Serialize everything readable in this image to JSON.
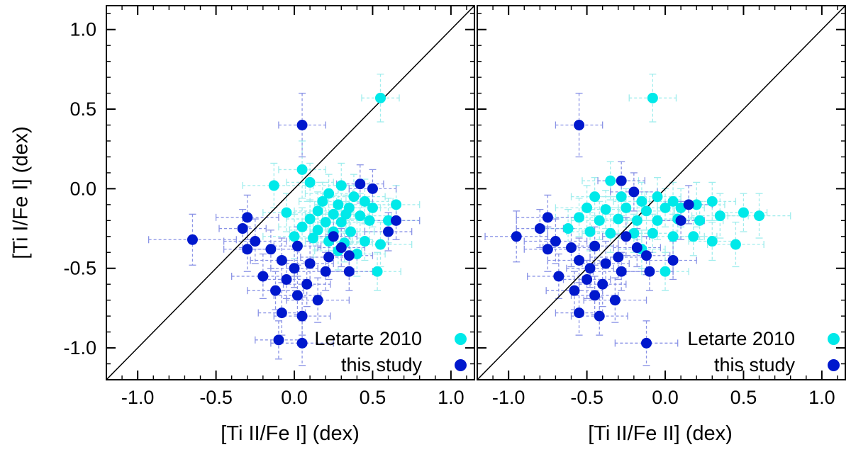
{
  "figure": {
    "background": "#ffffff",
    "axis_color": "#000000",
    "identity_line_color": "#000000"
  },
  "chart_data": [
    {
      "type": "scatter",
      "title": "",
      "xlabel": "[Ti II/Fe I] (dex)",
      "ylabel": "[Ti I/Fe I] (dex)",
      "xlim": [
        -1.2,
        1.15
      ],
      "ylim": [
        -1.2,
        1.15
      ],
      "ticks_major": [
        -1.0,
        -0.5,
        0.0,
        0.5,
        1.0
      ],
      "minor_tick_step": 0.1,
      "grid": false,
      "identity_line": true,
      "legend_position": "bottom-right",
      "series": [
        {
          "name": "Letarte 2010",
          "color": "#00e9e9",
          "errorbar_color": "#a0eded",
          "points": [
            [
              0.55,
              0.57,
              0.12,
              0.15
            ],
            [
              0.05,
              0.12,
              0.15,
              0.18
            ],
            [
              -0.13,
              0.02,
              0.2,
              0.14
            ],
            [
              0.1,
              0.04,
              0.15,
              0.12
            ],
            [
              0.3,
              0.02,
              0.18,
              0.14
            ],
            [
              0.22,
              -0.03,
              0.15,
              0.12
            ],
            [
              0.38,
              -0.05,
              0.2,
              0.14
            ],
            [
              0.18,
              -0.08,
              0.15,
              0.12
            ],
            [
              0.45,
              -0.08,
              0.18,
              0.14
            ],
            [
              0.28,
              -0.1,
              0.15,
              0.12
            ],
            [
              0.35,
              -0.12,
              0.2,
              0.14
            ],
            [
              0.5,
              -0.12,
              0.15,
              0.12
            ],
            [
              0.15,
              -0.14,
              0.15,
              0.12
            ],
            [
              0.25,
              -0.16,
              0.18,
              0.12
            ],
            [
              0.33,
              -0.16,
              0.15,
              0.12
            ],
            [
              0.42,
              -0.17,
              0.2,
              0.14
            ],
            [
              0.1,
              -0.19,
              0.15,
              0.12
            ],
            [
              0.2,
              -0.21,
              0.15,
              0.12
            ],
            [
              0.3,
              -0.21,
              0.18,
              0.12
            ],
            [
              0.48,
              -0.2,
              0.15,
              0.12
            ],
            [
              0.6,
              -0.2,
              0.2,
              0.14
            ],
            [
              0.65,
              -0.1,
              0.15,
              0.12
            ],
            [
              0.05,
              -0.24,
              0.15,
              0.12
            ],
            [
              0.15,
              -0.26,
              0.18,
              0.12
            ],
            [
              0.25,
              -0.27,
              0.15,
              0.12
            ],
            [
              0.36,
              -0.27,
              0.15,
              0.12
            ],
            [
              0.0,
              -0.3,
              0.2,
              0.14
            ],
            [
              0.12,
              -0.31,
              0.15,
              0.12
            ],
            [
              0.22,
              -0.33,
              0.15,
              0.12
            ],
            [
              0.32,
              -0.34,
              0.18,
              0.12
            ],
            [
              0.45,
              -0.33,
              0.15,
              0.12
            ],
            [
              0.55,
              -0.35,
              0.2,
              0.14
            ],
            [
              0.28,
              -0.39,
              0.15,
              0.12
            ],
            [
              0.4,
              -0.41,
              0.18,
              0.14
            ],
            [
              0.53,
              -0.52,
              0.15,
              0.12
            ],
            [
              -0.05,
              -0.15,
              0.15,
              0.12
            ]
          ]
        },
        {
          "name": "this study",
          "color": "#0018cd",
          "errorbar_color": "#8a93e6",
          "points": [
            [
              0.05,
              0.4,
              0.15,
              0.2
            ],
            [
              0.42,
              0.03,
              0.15,
              0.12
            ],
            [
              0.5,
              0.0,
              0.15,
              0.12
            ],
            [
              -0.3,
              -0.18,
              0.2,
              0.14
            ],
            [
              -0.33,
              -0.25,
              0.15,
              0.12
            ],
            [
              -0.65,
              -0.32,
              0.28,
              0.16
            ],
            [
              -0.25,
              -0.33,
              0.2,
              0.14
            ],
            [
              -0.3,
              -0.38,
              0.15,
              0.14
            ],
            [
              -0.15,
              -0.38,
              0.18,
              0.12
            ],
            [
              0.02,
              -0.36,
              0.15,
              0.12
            ],
            [
              0.25,
              -0.3,
              0.15,
              0.12
            ],
            [
              0.3,
              -0.37,
              0.15,
              0.12
            ],
            [
              0.22,
              -0.43,
              0.18,
              0.14
            ],
            [
              0.35,
              -0.42,
              0.15,
              0.12
            ],
            [
              -0.08,
              -0.45,
              0.2,
              0.14
            ],
            [
              0.0,
              -0.5,
              0.15,
              0.12
            ],
            [
              0.1,
              -0.47,
              0.15,
              0.14
            ],
            [
              0.2,
              -0.52,
              0.18,
              0.12
            ],
            [
              0.35,
              -0.52,
              0.15,
              0.12
            ],
            [
              -0.2,
              -0.55,
              0.2,
              0.14
            ],
            [
              -0.05,
              -0.57,
              0.15,
              0.12
            ],
            [
              0.08,
              -0.6,
              0.15,
              0.14
            ],
            [
              -0.12,
              -0.64,
              0.18,
              0.12
            ],
            [
              0.02,
              -0.67,
              0.15,
              0.12
            ],
            [
              0.15,
              -0.7,
              0.2,
              0.14
            ],
            [
              -0.08,
              -0.78,
              0.15,
              0.14
            ],
            [
              0.05,
              -0.8,
              0.18,
              0.12
            ],
            [
              -0.1,
              -0.95,
              0.15,
              0.12
            ],
            [
              0.05,
              -0.97,
              0.2,
              0.14
            ],
            [
              0.65,
              -0.2,
              0.15,
              0.12
            ],
            [
              0.6,
              -0.27,
              0.15,
              0.12
            ]
          ]
        }
      ]
    },
    {
      "type": "scatter",
      "title": "",
      "xlabel": "[Ti II/Fe II] (dex)",
      "ylabel": "[Ti I/Fe I] (dex)",
      "xlim": [
        -1.2,
        1.15
      ],
      "ylim": [
        -1.2,
        1.15
      ],
      "ticks_major": [
        -1.0,
        -0.5,
        0.0,
        0.5,
        1.0
      ],
      "minor_tick_step": 0.1,
      "grid": false,
      "identity_line": true,
      "legend_position": "bottom-right",
      "series": [
        {
          "name": "Letarte 2010",
          "color": "#00e9e9",
          "errorbar_color": "#a0eded",
          "points": [
            [
              -0.08,
              0.57,
              0.15,
              0.15
            ],
            [
              -0.35,
              0.05,
              0.18,
              0.12
            ],
            [
              -0.45,
              -0.05,
              0.15,
              0.12
            ],
            [
              -0.28,
              -0.05,
              0.15,
              0.12
            ],
            [
              -0.15,
              -0.08,
              0.18,
              0.12
            ],
            [
              -0.05,
              -0.05,
              0.15,
              0.12
            ],
            [
              0.05,
              -0.08,
              0.15,
              0.12
            ],
            [
              -0.5,
              -0.12,
              0.2,
              0.14
            ],
            [
              -0.38,
              -0.13,
              0.15,
              0.12
            ],
            [
              -0.25,
              -0.12,
              0.15,
              0.12
            ],
            [
              -0.12,
              -0.14,
              0.18,
              0.12
            ],
            [
              0.0,
              -0.12,
              0.15,
              0.12
            ],
            [
              0.1,
              -0.12,
              0.15,
              0.12
            ],
            [
              0.2,
              -0.1,
              0.18,
              0.14
            ],
            [
              0.3,
              -0.08,
              0.15,
              0.12
            ],
            [
              -0.55,
              -0.18,
              0.15,
              0.12
            ],
            [
              -0.42,
              -0.2,
              0.18,
              0.12
            ],
            [
              -0.3,
              -0.19,
              0.15,
              0.12
            ],
            [
              -0.18,
              -0.2,
              0.15,
              0.12
            ],
            [
              -0.05,
              -0.2,
              0.2,
              0.12
            ],
            [
              0.08,
              -0.19,
              0.15,
              0.12
            ],
            [
              0.22,
              -0.2,
              0.15,
              0.12
            ],
            [
              0.35,
              -0.17,
              0.18,
              0.14
            ],
            [
              0.5,
              -0.15,
              0.15,
              0.12
            ],
            [
              0.6,
              -0.17,
              0.2,
              0.14
            ],
            [
              -0.62,
              -0.25,
              0.15,
              0.12
            ],
            [
              -0.48,
              -0.27,
              0.15,
              0.12
            ],
            [
              -0.35,
              -0.28,
              0.18,
              0.12
            ],
            [
              -0.2,
              -0.28,
              0.15,
              0.12
            ],
            [
              -0.08,
              -0.28,
              0.15,
              0.12
            ],
            [
              0.05,
              -0.3,
              0.2,
              0.14
            ],
            [
              0.18,
              -0.3,
              0.15,
              0.12
            ],
            [
              0.3,
              -0.33,
              0.15,
              0.12
            ],
            [
              0.45,
              -0.35,
              0.18,
              0.14
            ],
            [
              -0.15,
              -0.38,
              0.15,
              0.12
            ],
            [
              0.0,
              -0.52,
              0.15,
              0.12
            ]
          ]
        },
        {
          "name": "this study",
          "color": "#0018cd",
          "errorbar_color": "#8a93e6",
          "points": [
            [
              -0.55,
              0.4,
              0.15,
              0.2
            ],
            [
              -0.28,
              0.05,
              0.15,
              0.12
            ],
            [
              -0.2,
              -0.02,
              0.15,
              0.12
            ],
            [
              -0.75,
              -0.18,
              0.2,
              0.14
            ],
            [
              -0.8,
              -0.25,
              0.15,
              0.12
            ],
            [
              -0.95,
              -0.3,
              0.2,
              0.16
            ],
            [
              -0.7,
              -0.33,
              0.2,
              0.14
            ],
            [
              -0.75,
              -0.38,
              0.15,
              0.14
            ],
            [
              -0.6,
              -0.37,
              0.18,
              0.12
            ],
            [
              -0.45,
              -0.36,
              0.15,
              0.12
            ],
            [
              -0.25,
              -0.3,
              0.15,
              0.12
            ],
            [
              -0.18,
              -0.37,
              0.15,
              0.12
            ],
            [
              -0.3,
              -0.43,
              0.18,
              0.14
            ],
            [
              -0.12,
              -0.42,
              0.15,
              0.12
            ],
            [
              -0.55,
              -0.45,
              0.2,
              0.14
            ],
            [
              -0.48,
              -0.5,
              0.15,
              0.12
            ],
            [
              -0.38,
              -0.47,
              0.15,
              0.14
            ],
            [
              -0.28,
              -0.52,
              0.18,
              0.12
            ],
            [
              -0.1,
              -0.52,
              0.15,
              0.12
            ],
            [
              -0.68,
              -0.55,
              0.2,
              0.14
            ],
            [
              -0.5,
              -0.57,
              0.15,
              0.12
            ],
            [
              -0.4,
              -0.6,
              0.15,
              0.14
            ],
            [
              -0.58,
              -0.64,
              0.18,
              0.12
            ],
            [
              -0.45,
              -0.67,
              0.15,
              0.12
            ],
            [
              -0.32,
              -0.7,
              0.2,
              0.14
            ],
            [
              -0.55,
              -0.78,
              0.15,
              0.14
            ],
            [
              -0.42,
              -0.8,
              0.18,
              0.12
            ],
            [
              -0.12,
              -0.97,
              0.2,
              0.14
            ],
            [
              0.1,
              -0.2,
              0.15,
              0.12
            ],
            [
              0.15,
              -0.1,
              0.15,
              0.12
            ],
            [
              0.05,
              -0.45,
              0.15,
              0.12
            ]
          ]
        }
      ]
    }
  ]
}
